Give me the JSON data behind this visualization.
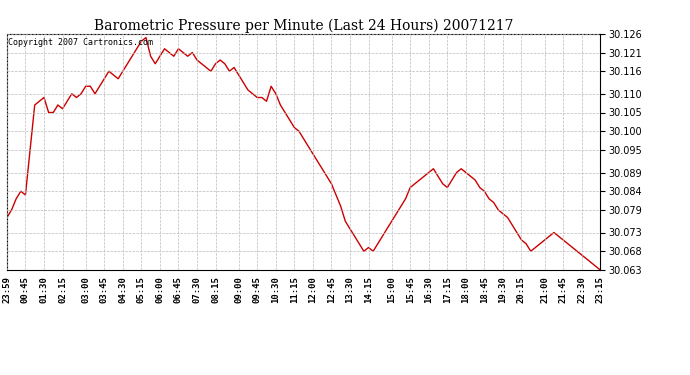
{
  "title": "Barometric Pressure per Minute (Last 24 Hours) 20071217",
  "copyright_text": "Copyright 2007 Cartronics.com",
  "line_color": "#cc0000",
  "background_color": "#ffffff",
  "plot_bg_color": "#ffffff",
  "grid_color": "#bbbbbb",
  "ylim": [
    30.063,
    30.126
  ],
  "yticks": [
    30.063,
    30.068,
    30.073,
    30.079,
    30.084,
    30.089,
    30.095,
    30.1,
    30.105,
    30.11,
    30.116,
    30.121,
    30.126
  ],
  "xtick_labels": [
    "23:59",
    "00:45",
    "01:30",
    "02:15",
    "03:00",
    "03:45",
    "04:30",
    "05:15",
    "06:00",
    "06:45",
    "07:30",
    "08:15",
    "09:00",
    "09:45",
    "10:30",
    "11:15",
    "12:00",
    "12:45",
    "13:30",
    "14:15",
    "15:00",
    "15:45",
    "16:30",
    "17:15",
    "18:00",
    "18:45",
    "19:30",
    "20:15",
    "21:00",
    "21:45",
    "22:30",
    "23:15"
  ],
  "pressure_data": [
    30.077,
    30.079,
    30.082,
    30.084,
    30.083,
    30.095,
    30.107,
    30.108,
    30.109,
    30.105,
    30.105,
    30.107,
    30.106,
    30.108,
    30.11,
    30.109,
    30.11,
    30.112,
    30.112,
    30.11,
    30.112,
    30.114,
    30.116,
    30.115,
    30.114,
    30.116,
    30.118,
    30.12,
    30.122,
    30.124,
    30.125,
    30.12,
    30.118,
    30.12,
    30.122,
    30.121,
    30.12,
    30.122,
    30.121,
    30.12,
    30.121,
    30.119,
    30.118,
    30.117,
    30.116,
    30.118,
    30.119,
    30.118,
    30.116,
    30.117,
    30.115,
    30.113,
    30.111,
    30.11,
    30.109,
    30.109,
    30.108,
    30.112,
    30.11,
    30.107,
    30.105,
    30.103,
    30.101,
    30.1,
    30.098,
    30.096,
    30.094,
    30.092,
    30.09,
    30.088,
    30.086,
    30.083,
    30.08,
    30.076,
    30.074,
    30.072,
    30.07,
    30.068,
    30.069,
    30.068,
    30.07,
    30.072,
    30.074,
    30.076,
    30.078,
    30.08,
    30.082,
    30.085,
    30.086,
    30.087,
    30.088,
    30.089,
    30.09,
    30.088,
    30.086,
    30.085,
    30.087,
    30.089,
    30.09,
    30.089,
    30.088,
    30.087,
    30.085,
    30.084,
    30.082,
    30.081,
    30.079,
    30.078,
    30.077,
    30.075,
    30.073,
    30.071,
    30.07,
    30.068,
    30.069,
    30.07,
    30.071,
    30.072,
    30.073,
    30.072,
    30.071,
    30.07,
    30.069,
    30.068,
    30.067,
    30.066,
    30.065,
    30.064,
    30.063
  ]
}
